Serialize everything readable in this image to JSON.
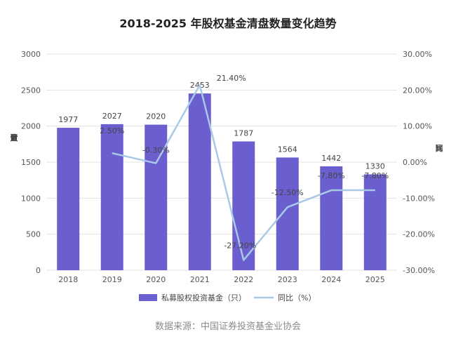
{
  "chart_data": {
    "type": "bar",
    "title": "2018-2025 年股权基金清盘数量变化趋势",
    "categories": [
      "2018",
      "2019",
      "2020",
      "2021",
      "2022",
      "2023",
      "2024",
      "2025"
    ],
    "series": [
      {
        "name": "私募股权投资基金（只）",
        "type": "bar",
        "axis": "left",
        "color": "#6b5fcf",
        "values": [
          1977,
          2027,
          2020,
          2453,
          1787,
          1564,
          1442,
          1330
        ],
        "labels": [
          "1977",
          "2027",
          "2020",
          "2453",
          "1787",
          "1564",
          "1442",
          "1330"
        ]
      },
      {
        "name": "同比（%）",
        "type": "line",
        "axis": "right",
        "color": "#a9c9e6",
        "values": [
          null,
          2.5,
          -0.3,
          21.4,
          -27.2,
          -12.5,
          -7.8,
          -7.8
        ],
        "labels": [
          "",
          "2.50%",
          "-0.30%",
          "21.40%",
          "-27.20%",
          "-12.50%",
          "-7.80%",
          "-7.80%"
        ]
      }
    ],
    "yleft": {
      "label": "清盘数量（只）",
      "label_chars": [
        "清",
        "盘",
        "数",
        "量",
        "（",
        "只",
        "）"
      ],
      "lim": [
        0,
        3000
      ],
      "ticks": [
        0,
        500,
        1000,
        1500,
        2000,
        2500,
        3000
      ],
      "tick_labels": [
        "0",
        "500",
        "1000",
        "1500",
        "2000",
        "2500",
        "3000"
      ]
    },
    "yright": {
      "label": "同比（%）",
      "label_chars": [
        "同",
        "比",
        "（",
        "%",
        "）"
      ],
      "lim": [
        -30,
        30
      ],
      "ticks": [
        -30,
        -20,
        -10,
        0,
        10,
        20,
        30
      ],
      "tick_labels": [
        "-30.00%",
        "-20.00%",
        "-10.00%",
        "0.00%",
        "10.00%",
        "20.00%",
        "30.00%"
      ]
    },
    "legend": "bottom",
    "grid": true
  },
  "source": "数据来源：中国证券投资基金业协会"
}
